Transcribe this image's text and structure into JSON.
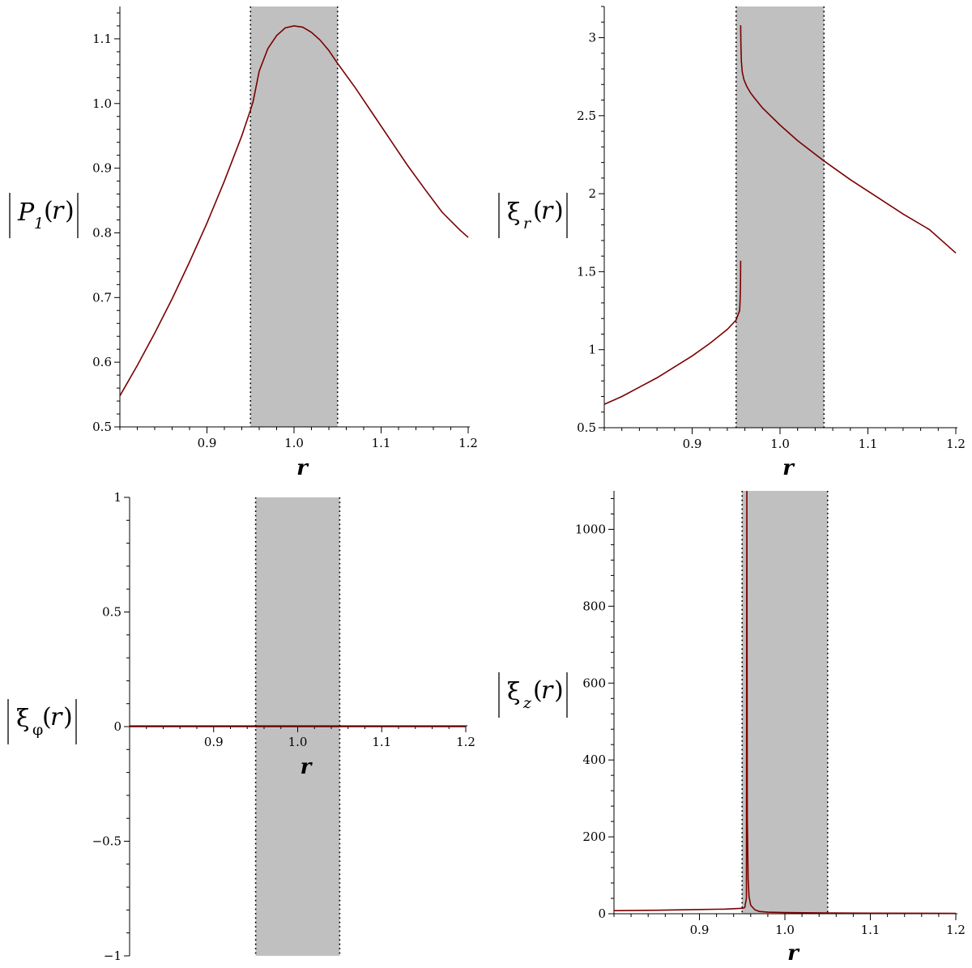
{
  "chart_data": [
    {
      "type": "line",
      "panel": "top-left",
      "ylabel_main": "P",
      "ylabel_sub": "1",
      "ylabel_arg": "r",
      "xlabel": "r",
      "xlim": [
        0.8,
        1.2
      ],
      "ylim": [
        0.5,
        1.15
      ],
      "xticks": [
        "0.9",
        "1.0",
        "1.1",
        "1.2"
      ],
      "xtick_values": [
        0.9,
        1.0,
        1.1,
        1.2
      ],
      "yticks": [
        "0.5",
        "0.6",
        "0.7",
        "0.8",
        "0.9",
        "1.0",
        "1.1"
      ],
      "ytick_values": [
        0.5,
        0.6,
        0.7,
        0.8,
        0.9,
        1.0,
        1.1
      ],
      "y_axis_at": 0.8,
      "shaded_region": [
        0.95,
        1.05
      ],
      "series": [
        {
          "x": [
            0.8,
            0.82,
            0.84,
            0.86,
            0.88,
            0.9,
            0.92,
            0.94,
            0.95,
            0.953,
            0.96,
            0.97,
            0.98,
            0.99,
            1.0,
            1.01,
            1.02,
            1.03,
            1.04,
            1.05,
            1.07,
            1.09,
            1.11,
            1.13,
            1.15,
            1.17,
            1.19,
            1.2
          ],
          "y": [
            0.548,
            0.595,
            0.645,
            0.698,
            0.755,
            0.815,
            0.88,
            0.95,
            0.99,
            1.003,
            1.05,
            1.085,
            1.105,
            1.117,
            1.12,
            1.118,
            1.11,
            1.098,
            1.082,
            1.062,
            1.025,
            0.985,
            0.945,
            0.905,
            0.868,
            0.832,
            0.805,
            0.793
          ]
        }
      ]
    },
    {
      "type": "line",
      "panel": "top-right",
      "ylabel_main": "ξ",
      "ylabel_sub": "r",
      "ylabel_arg": "r",
      "xlabel": "r",
      "xlim": [
        0.8,
        1.2
      ],
      "ylim": [
        0.5,
        3.2
      ],
      "xticks": [
        "0.9",
        "1.0",
        "1.1",
        "1.2"
      ],
      "xtick_values": [
        0.9,
        1.0,
        1.1,
        1.2
      ],
      "yticks": [
        "0.5",
        "1",
        "1.5",
        "2",
        "2.5",
        "3"
      ],
      "ytick_values": [
        0.5,
        1.0,
        1.5,
        2.0,
        2.5,
        3.0
      ],
      "y_axis_at": 0.8,
      "shaded_region": [
        0.95,
        1.05
      ],
      "series": [
        {
          "x": [
            0.8,
            0.82,
            0.84,
            0.86,
            0.88,
            0.9,
            0.92,
            0.94,
            0.95,
            0.952,
            0.954,
            0.9545,
            0.955,
            0.9552
          ],
          "y": [
            0.65,
            0.7,
            0.76,
            0.82,
            0.89,
            0.96,
            1.04,
            1.13,
            1.19,
            1.22,
            1.25,
            1.3,
            1.4,
            1.57
          ]
        },
        {
          "x": [
            0.9552,
            0.9555,
            0.956,
            0.957,
            0.959,
            0.962,
            0.966,
            0.97,
            0.98,
            1.0,
            1.02,
            1.05,
            1.08,
            1.11,
            1.14,
            1.17,
            1.2
          ],
          "y": [
            3.08,
            2.95,
            2.85,
            2.78,
            2.73,
            2.69,
            2.65,
            2.62,
            2.55,
            2.44,
            2.34,
            2.21,
            2.09,
            1.98,
            1.87,
            1.77,
            1.62
          ]
        }
      ]
    },
    {
      "type": "line",
      "panel": "bottom-left",
      "ylabel_main": "ξ",
      "ylabel_sub": "φ",
      "ylabel_arg": "r",
      "xlabel": "r",
      "xlim": [
        0.8,
        1.2
      ],
      "ylim": [
        -1,
        1
      ],
      "xticks": [
        "0.9",
        "1.0",
        "1.1",
        "1.2"
      ],
      "xtick_values": [
        0.9,
        1.0,
        1.1,
        1.2
      ],
      "yticks": [
        "−1",
        "−0.5",
        "0",
        "0.5",
        "1"
      ],
      "ytick_values": [
        -1,
        -0.5,
        0,
        0.5,
        1
      ],
      "y_axis_at": 0.8,
      "shaded_region": [
        0.95,
        1.05
      ],
      "series": [
        {
          "x": [
            0.8,
            1.2
          ],
          "y": [
            0,
            0
          ]
        }
      ]
    },
    {
      "type": "line",
      "panel": "bottom-right",
      "ylabel_main": "ξ",
      "ylabel_sub": "z",
      "ylabel_arg": "r",
      "xlabel": "r",
      "xlim": [
        0.8,
        1.2
      ],
      "ylim": [
        0,
        1100
      ],
      "xticks": [
        "0.9",
        "1.0",
        "1.1",
        "1.2"
      ],
      "xtick_values": [
        0.9,
        1.0,
        1.1,
        1.2
      ],
      "yticks": [
        "0",
        "200",
        "400",
        "600",
        "800",
        "1000"
      ],
      "ytick_values": [
        0,
        200,
        400,
        600,
        800,
        1000
      ],
      "y_axis_at": 0.8,
      "shaded_region": [
        0.95,
        1.05
      ],
      "series": [
        {
          "x": [
            0.8,
            0.85,
            0.9,
            0.93,
            0.95,
            0.953,
            0.955,
            0.9555,
            0.956,
            0.957,
            0.958,
            0.96,
            0.965,
            0.97,
            0.98,
            1.0,
            1.05,
            1.1,
            1.2
          ],
          "y": [
            8,
            9,
            11,
            12,
            14,
            16,
            40,
            1100,
            250,
            90,
            45,
            22,
            10,
            6,
            4,
            3,
            2,
            1.5,
            1
          ]
        }
      ]
    }
  ]
}
